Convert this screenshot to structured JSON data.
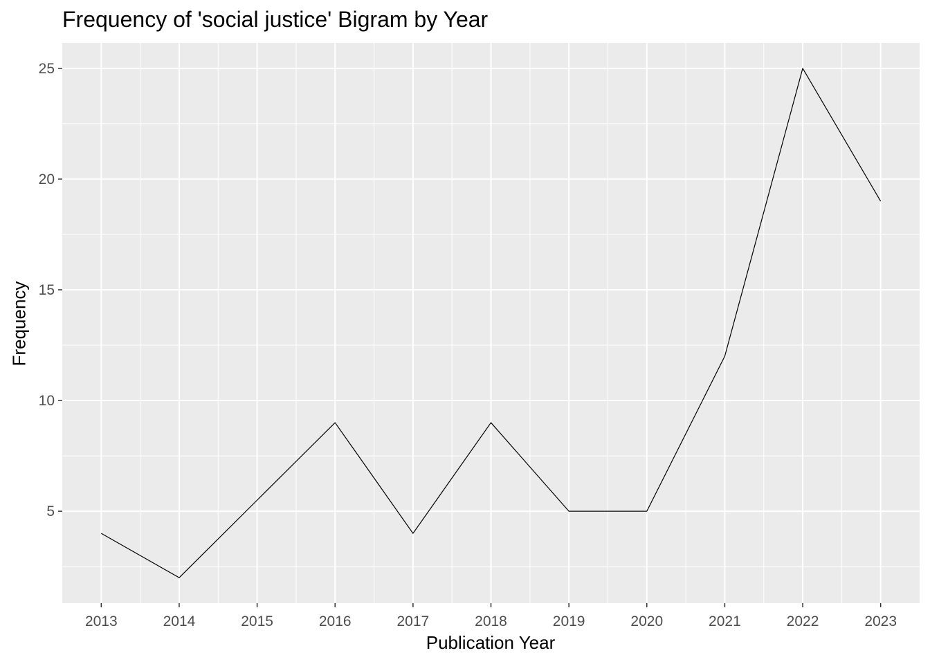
{
  "chart_data": {
    "type": "line",
    "title": "Frequency of 'social justice' Bigram by Year",
    "xlabel": "Publication Year",
    "ylabel": "Frequency",
    "x": [
      2013,
      2014,
      2015,
      2016,
      2017,
      2018,
      2019,
      2020,
      2021,
      2022,
      2023
    ],
    "series": [
      {
        "values": [
          4,
          2,
          5.5,
          9,
          4,
          9,
          5,
          5,
          12,
          25,
          19
        ]
      }
    ],
    "xlim": [
      2012.5,
      2023.5
    ],
    "ylim": [
      0.85,
      26.15
    ],
    "xticks": [
      "2013",
      "2014",
      "2015",
      "2016",
      "2017",
      "2018",
      "2019",
      "2020",
      "2021",
      "2022",
      "2023"
    ],
    "yticks": [
      "5",
      "10",
      "15",
      "20",
      "25"
    ],
    "ytick_values": [
      5,
      10,
      15,
      20,
      25
    ],
    "grid": true,
    "legend": "none",
    "colors": {
      "panel": "#ebebeb",
      "grid": "#ffffff",
      "line": "#000000",
      "tick_text": "#4d4d4d",
      "tick_mark": "#333333"
    }
  }
}
